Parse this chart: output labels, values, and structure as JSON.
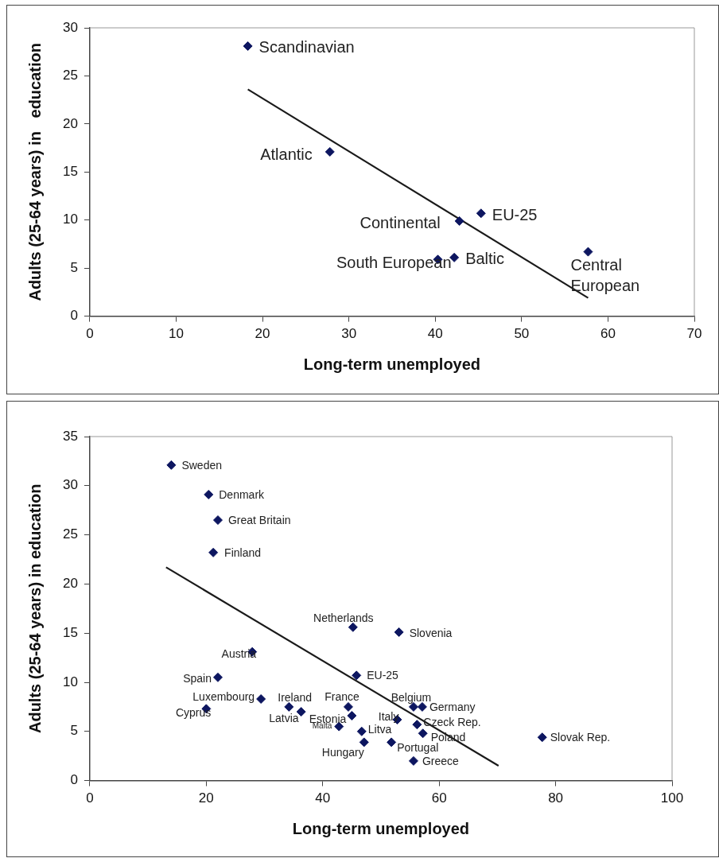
{
  "chart_data": [
    {
      "type": "scatter",
      "xlabel": "Long-term unemployed",
      "ylabel": "Adults (25-64 years) in   education",
      "xlim": [
        0,
        70
      ],
      "xticks": [
        0,
        10,
        20,
        30,
        40,
        50,
        60,
        70
      ],
      "ylim": [
        0,
        30
      ],
      "yticks": [
        0,
        5,
        10,
        15,
        20,
        25,
        30
      ],
      "grid": false,
      "legend": false,
      "marker": "diamond",
      "series": [
        {
          "color": "#0d1660",
          "x": [
            18.3,
            27.8,
            42.8,
            45.3,
            40.3,
            42.2,
            57.7
          ],
          "values": [
            28.1,
            17.1,
            9.9,
            10.7,
            5.9,
            6.1,
            6.7
          ]
        },
        {
          "type": "line",
          "color": "#1a1a1a",
          "marker": "none",
          "line_style": "solid",
          "x": [
            18.3,
            57.7
          ],
          "values": [
            23.6,
            1.9
          ]
        }
      ],
      "annotations": [
        {
          "text": "Scandinavian",
          "x": 18.3,
          "y": 28.1
        },
        {
          "text": "Atlantic",
          "x": 27.8,
          "y": 17.1
        },
        {
          "text": "Continental",
          "x": 42.8,
          "y": 9.9
        },
        {
          "text": "EU-25",
          "x": 45.3,
          "y": 10.7
        },
        {
          "text": "South European",
          "x": 40.3,
          "y": 5.9
        },
        {
          "text": "Baltic",
          "x": 42.2,
          "y": 6.1
        },
        {
          "text": "Central European",
          "x": 57.7,
          "y": 6.7
        }
      ]
    },
    {
      "type": "scatter",
      "xlabel": "Long-term unemployed",
      "ylabel": "Adults (25-64 years) in education",
      "xlim": [
        0,
        100
      ],
      "xticks": [
        0,
        20,
        40,
        60,
        80,
        100
      ],
      "ylim": [
        0,
        35
      ],
      "yticks": [
        0,
        5,
        10,
        15,
        20,
        25,
        30,
        35
      ],
      "grid": false,
      "legend": false,
      "marker": "diamond",
      "series": [
        {
          "color": "#0d1660",
          "x": [
            14.0,
            20.4,
            22.0,
            21.2,
            45.2,
            53.1,
            27.9,
            22.0,
            45.8,
            29.4,
            34.2,
            20.0,
            36.3,
            45.0,
            42.8,
            44.4,
            46.7,
            47.1,
            52.8,
            55.6,
            57.1,
            56.2,
            57.2,
            51.8,
            55.6,
            77.7
          ],
          "values": [
            32.1,
            29.1,
            26.5,
            23.2,
            15.6,
            15.1,
            13.1,
            10.5,
            10.7,
            8.3,
            7.5,
            7.3,
            7.0,
            6.6,
            5.5,
            7.5,
            5.0,
            3.9,
            6.2,
            7.5,
            7.5,
            5.7,
            4.8,
            3.9,
            2.0,
            4.4
          ]
        },
        {
          "type": "line",
          "color": "#1a1a1a",
          "marker": "none",
          "line_style": "solid",
          "x": [
            13.1,
            70.2
          ],
          "values": [
            21.7,
            1.5
          ]
        }
      ],
      "annotations": [
        {
          "text": "Sweden",
          "x": 14.0,
          "y": 32.1
        },
        {
          "text": "Denmark",
          "x": 20.4,
          "y": 29.1
        },
        {
          "text": "Great Britain",
          "x": 22.0,
          "y": 26.5
        },
        {
          "text": "Finland",
          "x": 21.2,
          "y": 23.2
        },
        {
          "text": "Netherlands",
          "x": 45.2,
          "y": 15.6
        },
        {
          "text": "Slovenia",
          "x": 53.1,
          "y": 15.1
        },
        {
          "text": "Austria",
          "x": 27.9,
          "y": 13.1
        },
        {
          "text": "Spain",
          "x": 22.0,
          "y": 10.5
        },
        {
          "text": "EU-25",
          "x": 45.8,
          "y": 10.7
        },
        {
          "text": "Luxembourg",
          "x": 29.4,
          "y": 8.3
        },
        {
          "text": "Ireland",
          "x": 34.2,
          "y": 7.5
        },
        {
          "text": "Cyprus",
          "x": 20.0,
          "y": 7.3
        },
        {
          "text": "Latvia",
          "x": 36.3,
          "y": 7.0
        },
        {
          "text": "Estonia",
          "x": 45.0,
          "y": 6.6
        },
        {
          "text": "Malta",
          "x": 42.8,
          "y": 5.5
        },
        {
          "text": "France",
          "x": 44.4,
          "y": 7.5
        },
        {
          "text": "Litva",
          "x": 46.7,
          "y": 5.0
        },
        {
          "text": "Hungary",
          "x": 47.1,
          "y": 3.9
        },
        {
          "text": "Italy",
          "x": 52.8,
          "y": 6.2
        },
        {
          "text": "Belgium",
          "x": 55.6,
          "y": 7.5
        },
        {
          "text": "Germany",
          "x": 57.1,
          "y": 7.5
        },
        {
          "text": "Czeck Rep.",
          "x": 56.2,
          "y": 5.7
        },
        {
          "text": "Poland",
          "x": 57.2,
          "y": 4.8
        },
        {
          "text": "Portugal",
          "x": 51.8,
          "y": 3.9
        },
        {
          "text": "Greece",
          "x": 55.6,
          "y": 2.0
        },
        {
          "text": "Slovak Rep.",
          "x": 77.7,
          "y": 4.4
        }
      ]
    }
  ]
}
